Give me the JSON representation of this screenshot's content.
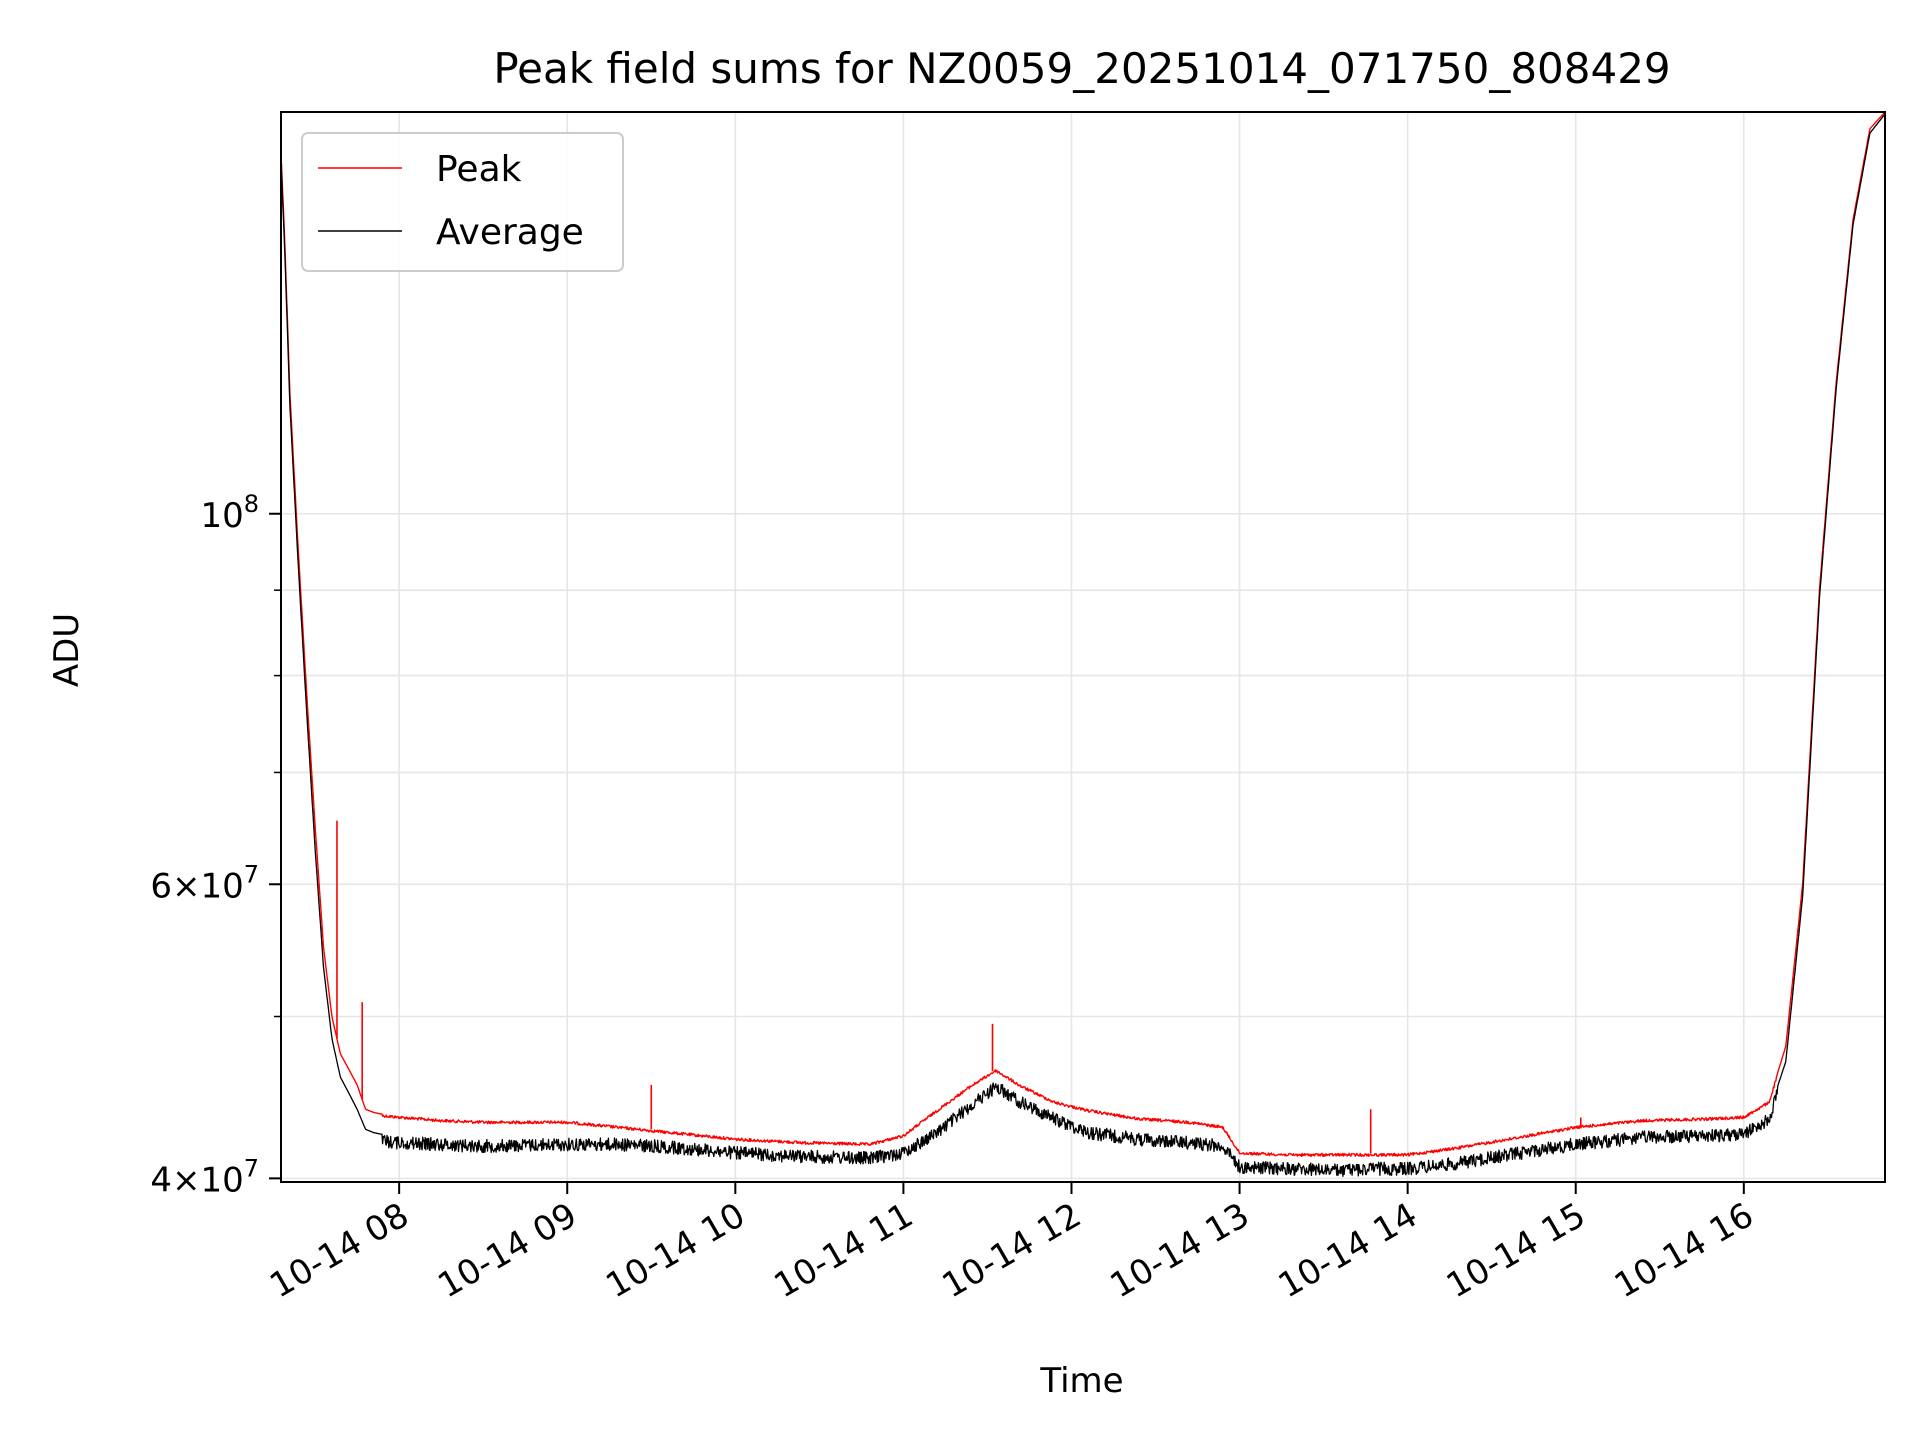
{
  "chart_data": {
    "type": "line",
    "title": "Peak field sums for NZ0059_20251014_071750_808429",
    "xlabel": "Time",
    "ylabel": "ADU",
    "yscale": "log",
    "ylim": [
      39800000,
      174000000
    ],
    "xlim_hours": [
      7.297,
      16.84
    ],
    "grid": true,
    "legend_position": "upper-left",
    "x_tick_labels": [
      "10-14 08",
      "10-14 09",
      "10-14 10",
      "10-14 11",
      "10-14 12",
      "10-14 13",
      "10-14 14",
      "10-14 15",
      "10-14 16"
    ],
    "x_tick_hours": [
      8,
      9,
      10,
      11,
      12,
      13,
      14,
      15,
      16
    ],
    "y_tick_labels": [
      {
        "mantissa": "4×10",
        "exp": "7",
        "value": 40000000
      },
      {
        "mantissa": "6×10",
        "exp": "7",
        "value": 60000000
      },
      {
        "mantissa": "10",
        "exp": "8",
        "value": 100000000
      }
    ],
    "y_minor_ticks": [
      50000000,
      70000000,
      80000000,
      90000000
    ],
    "series": [
      {
        "name": "Peak",
        "color": "#ff0000",
        "x_hours": [
          7.3,
          7.32,
          7.35,
          7.4,
          7.45,
          7.5,
          7.55,
          7.6,
          7.65,
          7.7,
          7.75,
          7.8,
          7.85,
          7.9,
          8.0,
          8.25,
          8.5,
          9.0,
          9.3,
          9.5,
          9.8,
          10.0,
          10.4,
          10.8,
          11.0,
          11.2,
          11.4,
          11.55,
          11.7,
          11.9,
          12.1,
          12.4,
          12.7,
          12.9,
          13.0,
          13.3,
          13.6,
          13.8,
          14.0,
          14.3,
          14.6,
          15.0,
          15.4,
          15.8,
          16.0,
          16.15,
          16.25,
          16.35,
          16.45,
          16.55,
          16.65,
          16.75,
          16.84
        ],
        "values": [
          162000000,
          145000000,
          118000000,
          95000000,
          78000000,
          65000000,
          55000000,
          50000000,
          47500000,
          46500000,
          45500000,
          44000000,
          43800000,
          43700000,
          43600000,
          43400000,
          43300000,
          43300000,
          43000000,
          42800000,
          42500000,
          42300000,
          42100000,
          42000000,
          42500000,
          44000000,
          45500000,
          46500000,
          45500000,
          44500000,
          44000000,
          43500000,
          43300000,
          43000000,
          41500000,
          41400000,
          41400000,
          41400000,
          41400000,
          41800000,
          42300000,
          43000000,
          43400000,
          43500000,
          43600000,
          44500000,
          48000000,
          60000000,
          90000000,
          120000000,
          150000000,
          170000000,
          174000000
        ]
      },
      {
        "name": "Average",
        "color": "#000000",
        "x_hours": [
          7.3,
          7.32,
          7.35,
          7.4,
          7.45,
          7.5,
          7.55,
          7.6,
          7.65,
          7.7,
          7.75,
          7.8,
          7.85,
          7.9,
          8.0,
          8.25,
          8.5,
          9.0,
          9.3,
          9.5,
          9.8,
          10.0,
          10.4,
          10.8,
          11.0,
          11.2,
          11.4,
          11.55,
          11.7,
          11.9,
          12.1,
          12.4,
          12.7,
          12.9,
          13.0,
          13.3,
          13.6,
          13.8,
          14.0,
          14.3,
          14.6,
          15.0,
          15.4,
          15.8,
          16.0,
          16.15,
          16.25,
          16.35,
          16.45,
          16.55,
          16.65,
          16.75,
          16.84
        ],
        "values": [
          160000000,
          143000000,
          116000000,
          93000000,
          76000000,
          63000000,
          53500000,
          48500000,
          46000000,
          45000000,
          44000000,
          42800000,
          42600000,
          42500000,
          42400000,
          42300000,
          42200000,
          42300000,
          42300000,
          42200000,
          42000000,
          41800000,
          41600000,
          41500000,
          41800000,
          43000000,
          44600000,
          45800000,
          44800000,
          43800000,
          43000000,
          42600000,
          42400000,
          42200000,
          41000000,
          40900000,
          40800000,
          40900000,
          40900000,
          41200000,
          41700000,
          42300000,
          42700000,
          42800000,
          42900000,
          43800000,
          47000000,
          59000000,
          89000000,
          119000000,
          149000000,
          169000000,
          173500000
        ]
      }
    ],
    "spikes": [
      {
        "series": "Peak",
        "x_hour": 7.63,
        "value": 65500000
      },
      {
        "series": "Peak",
        "x_hour": 7.78,
        "value": 51000000
      },
      {
        "series": "Peak",
        "x_hour": 9.5,
        "value": 45500000
      },
      {
        "series": "Peak",
        "x_hour": 11.53,
        "value": 49500000
      },
      {
        "series": "Peak",
        "x_hour": 13.78,
        "value": 44000000
      },
      {
        "series": "Peak",
        "x_hour": 15.03,
        "value": 43500000
      },
      {
        "series": "Peak",
        "x_hour": 16.47,
        "value": 95000000
      }
    ]
  }
}
